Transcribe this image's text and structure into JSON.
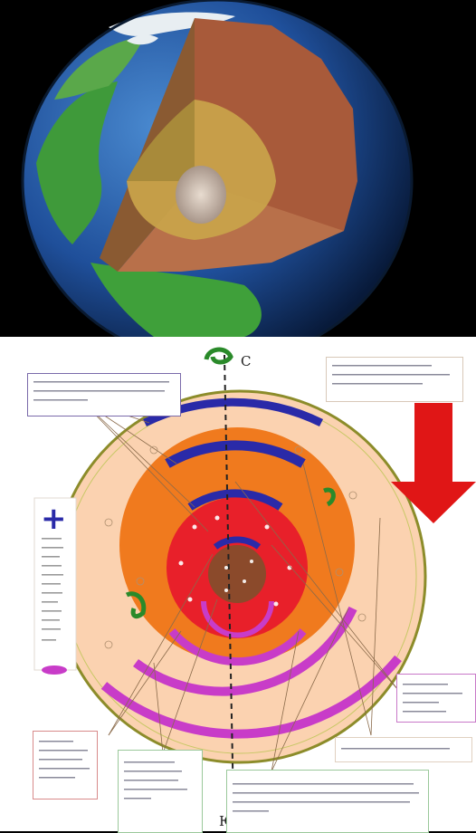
{
  "images": {
    "globe": {
      "name": "earth-cutaway-globe",
      "colors": {
        "ocean": "#1f4f9a",
        "land": "#3f9a3a",
        "ice": "#e8eef2",
        "crust": "#a85a3a",
        "mantle": "#b47a4c",
        "outer_core": "#c8a24a",
        "inner_core": "#d6c7b6"
      }
    }
  },
  "diagram": {
    "pole_north": "С",
    "pole_south": "Ю",
    "plus_sign": "+",
    "colors": {
      "atmosphere": "#fbd2b0",
      "ring_outline": "#8c8c2a",
      "mantle": "#f07a1e",
      "outer_core": "#e8202a",
      "inner_core": "#8b4a2b",
      "compression": "#2a2aa8",
      "expansion": "#c83cc8",
      "arrow": "#e01616",
      "rotation": "#2a8a2a"
    }
  }
}
